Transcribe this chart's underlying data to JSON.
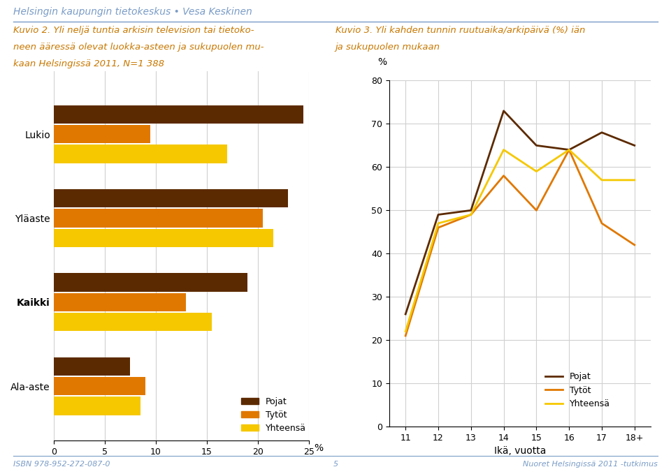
{
  "header_text": "Helsingin kaupungin tietokeskus • Vesa Keskinen",
  "header_color": "#7a9cc7",
  "header_line_color": "#7a9cc7",
  "footer_isbn": "ISBN 978-952-272-087-0",
  "footer_page": "5",
  "footer_right": "Nuoret Helsingissä 2011 -tutkimus",
  "footer_color": "#7a9cc7",
  "bar_title_line1": "Kuvio 2. Yli neljä tuntia arkisin television tai tietoko-",
  "bar_title_line2": "neen ääressä olevat luokka-asteen ja sukupuolen mu-",
  "bar_title_line3": "kaan Helsingissä 2011, N=1 388",
  "bar_title_color": "#c87800",
  "bar_categories": [
    "Lukio",
    "Yläaste",
    "Kaikki",
    "Ala-aste"
  ],
  "bar_pojat": [
    24.5,
    23.0,
    19.0,
    7.5
  ],
  "bar_tytot": [
    9.5,
    20.5,
    13.0,
    9.0
  ],
  "bar_yhteensa": [
    17.0,
    21.5,
    15.5,
    8.5
  ],
  "bar_color_pojat": "#5c2a00",
  "bar_color_tytot": "#e07800",
  "bar_color_yhteensa": "#f5c800",
  "bar_xlim": [
    0,
    25
  ],
  "bar_xticks": [
    0,
    5,
    10,
    15,
    20,
    25
  ],
  "bar_xlabel": "%",
  "bar_legend_labels": [
    "Pojat",
    "Tytöt",
    "Yhteensä"
  ],
  "line_title_line1": "Kuvio 3. Yli kahden tunnin ruutuaika/arkipäivä (%) iän",
  "line_title_line2": "ja sukupuolen mukaan",
  "line_title_color": "#c87800",
  "line_ages_numeric": [
    11,
    12,
    13,
    14,
    15,
    16,
    17,
    18
  ],
  "line_pojat": [
    26,
    49,
    50,
    73,
    65,
    64,
    68,
    65
  ],
  "line_tytot": [
    21,
    46,
    49,
    58,
    50,
    64,
    47,
    42
  ],
  "line_yhteensa": [
    22,
    47,
    49,
    64,
    59,
    64,
    57,
    57
  ],
  "line_color_pojat": "#5c2a00",
  "line_color_tytot": "#e07800",
  "line_color_yhteensa": "#f5c800",
  "line_ylim": [
    0,
    80
  ],
  "line_yticks": [
    0,
    10,
    20,
    30,
    40,
    50,
    60,
    70,
    80
  ],
  "line_ylabel": "%",
  "line_xlabel": "Ikä, vuotta",
  "line_legend_labels": [
    "Pojat",
    "Tytöt",
    "Yhteensä"
  ],
  "bg_color": "#ffffff",
  "grid_color": "#d0d0d0"
}
